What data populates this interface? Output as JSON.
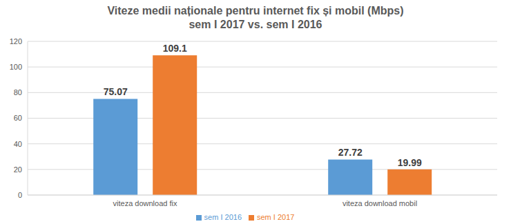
{
  "chart_data": {
    "type": "bar",
    "title": "Viteze medii naționale pentru internet fix și mobil (Mbps)",
    "subtitle": "sem I 2017 vs. sem I 2016",
    "categories": [
      "viteza download fix",
      "viteza download mobil"
    ],
    "series": [
      {
        "name": "sem I 2016",
        "color": "#5b9bd5",
        "values": [
          75.07,
          27.72
        ]
      },
      {
        "name": "sem I 2017",
        "color": "#ed7d31",
        "values": [
          109.1,
          19.99
        ]
      }
    ],
    "ylim": [
      0,
      120
    ],
    "yticks": [
      0,
      20,
      40,
      60,
      80,
      100,
      120
    ],
    "grid": true,
    "legend": "bottom",
    "data_labels": true
  }
}
